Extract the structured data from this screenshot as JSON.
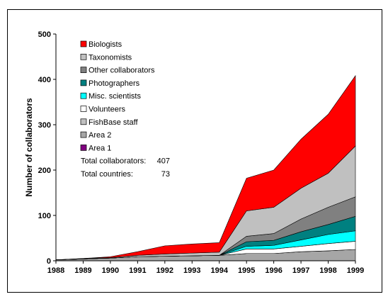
{
  "chart_data": {
    "type": "area",
    "stacked": true,
    "ylabel": "Number of collaborators",
    "xlabel": "",
    "ylim": [
      0,
      500
    ],
    "yticks": [
      "0",
      "100",
      "200",
      "300",
      "400",
      "500"
    ],
    "categories": [
      "1988",
      "1989",
      "1990",
      "1991",
      "1992",
      "1993",
      "1994",
      "1995",
      "1996",
      "1997",
      "1998",
      "1999"
    ],
    "legend_position": "top-left",
    "grid": false,
    "series": [
      {
        "name": "Area 1",
        "color": "#800080",
        "values": [
          0,
          0,
          0,
          0,
          0,
          0,
          0,
          0,
          0,
          0,
          0,
          0
        ]
      },
      {
        "name": "Area 2",
        "color": "#a6a6a6",
        "values": [
          2,
          4,
          6,
          9,
          10,
          11,
          12,
          16,
          16,
          20,
          22,
          25
        ]
      },
      {
        "name": "FishBase staff",
        "color": "#c0c0c0",
        "values": [
          0,
          0,
          0,
          0,
          0,
          0,
          0,
          0,
          0,
          0,
          0,
          0
        ]
      },
      {
        "name": "Volunteers",
        "color": "#ffffff",
        "values": [
          0,
          0,
          0,
          0,
          0,
          0,
          0,
          10,
          10,
          12,
          16,
          18
        ]
      },
      {
        "name": "Misc. scientists",
        "color": "#00ffff",
        "values": [
          0,
          0,
          0,
          0,
          0,
          0,
          0,
          6,
          8,
          14,
          20,
          23
        ]
      },
      {
        "name": "Photographers",
        "color": "#008080",
        "values": [
          0,
          0,
          0,
          0,
          0,
          0,
          0,
          10,
          11,
          18,
          22,
          32
        ]
      },
      {
        "name": "Other collaborators",
        "color": "#808080",
        "values": [
          0,
          0,
          0,
          0,
          0,
          0,
          0,
          12,
          15,
          28,
          38,
          43
        ]
      },
      {
        "name": "Taxonomists",
        "color": "#c0c0c0",
        "values": [
          0,
          1,
          1,
          3,
          5,
          6,
          7,
          56,
          58,
          68,
          75,
          112
        ]
      },
      {
        "name": "Biologists",
        "color": "#ff0000",
        "values": [
          0,
          0,
          2,
          8,
          18,
          20,
          21,
          72,
          82,
          108,
          130,
          155
        ]
      }
    ],
    "legend_order": [
      "Biologists",
      "Taxonomists",
      "Other collaborators",
      "Photographers",
      "Misc. scientists",
      "Volunteers",
      "FishBase staff",
      "Area 2",
      "Area 1"
    ],
    "annotations": [
      {
        "label": "Total collaborators:",
        "value": "407"
      },
      {
        "label": "Total countries:",
        "value": "73"
      }
    ]
  }
}
